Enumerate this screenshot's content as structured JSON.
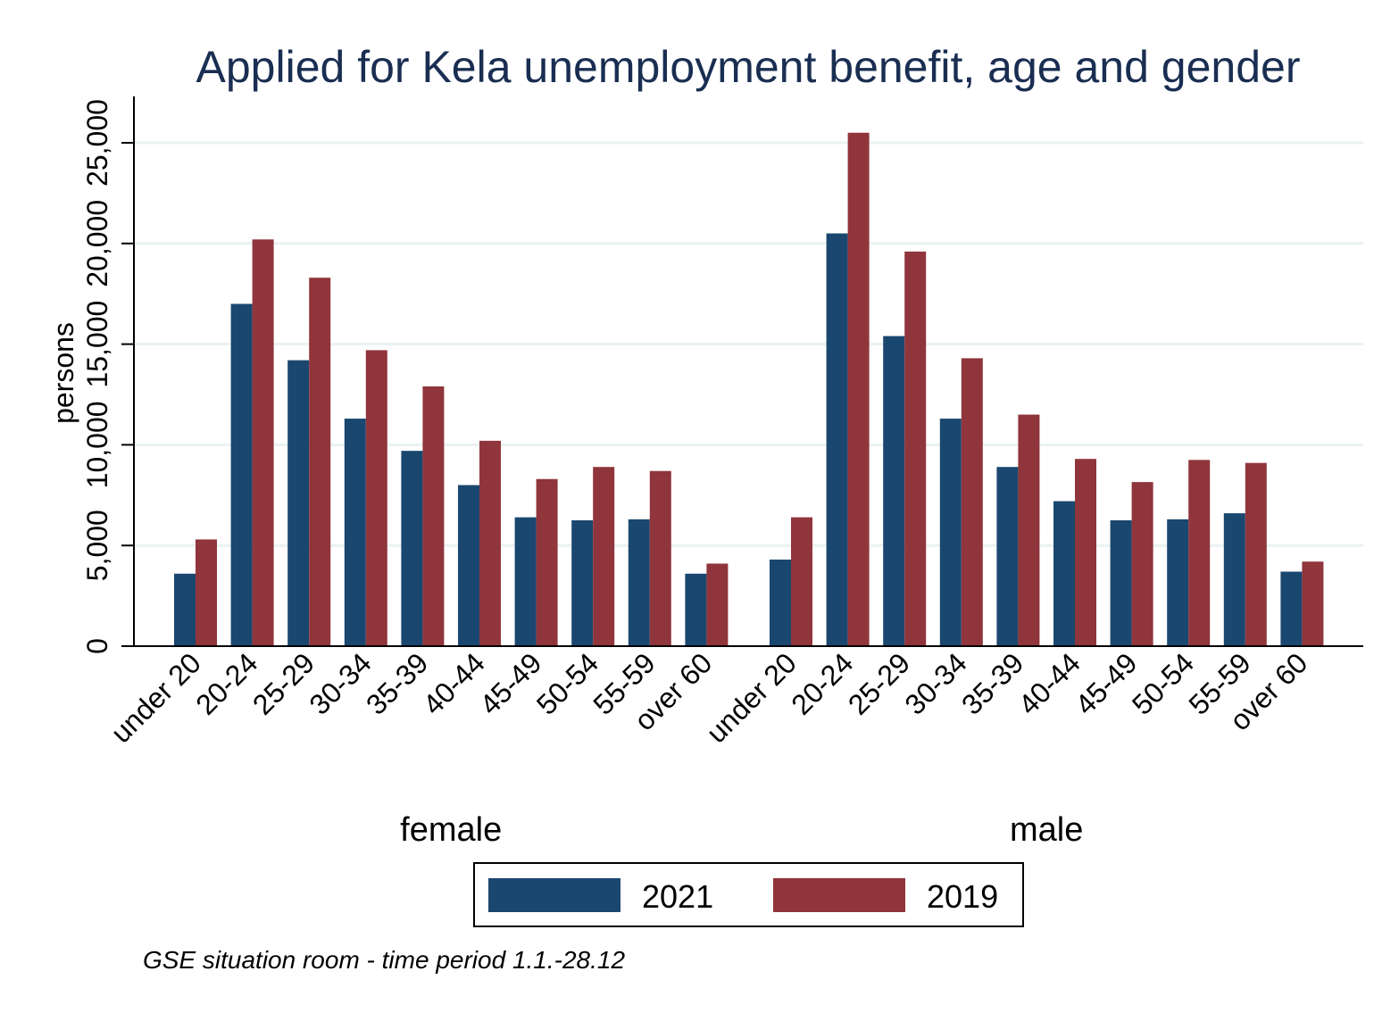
{
  "chart_data": {
    "type": "bar",
    "title": "Applied for Kela unemployment benefit, age and gender",
    "ylabel": "persons",
    "xlabel": "",
    "ylim": [
      0,
      27000
    ],
    "yticks": [
      0,
      5000,
      10000,
      15000,
      20000,
      25000
    ],
    "ytick_labels": [
      "0",
      "5,000",
      "10,000",
      "15,000",
      "20,000",
      "25,000"
    ],
    "grid": true,
    "groups": [
      "female",
      "male"
    ],
    "categories": [
      "under 20",
      "20-24",
      "25-29",
      "30-34",
      "35-39",
      "40-44",
      "45-49",
      "50-54",
      "55-59",
      "over 60"
    ],
    "series": [
      {
        "name": "2021",
        "color": "#1a476f",
        "values": {
          "female": [
            3600,
            17000,
            14200,
            11300,
            9700,
            8000,
            6400,
            6250,
            6300,
            3600
          ],
          "male": [
            4300,
            20500,
            15400,
            11300,
            8900,
            7200,
            6250,
            6300,
            6600,
            3700
          ]
        }
      },
      {
        "name": "2019",
        "color": "#90353b",
        "values": {
          "female": [
            5300,
            20200,
            18300,
            14700,
            12900,
            10200,
            8300,
            8900,
            8700,
            4100
          ],
          "male": [
            6400,
            25500,
            19600,
            14300,
            11500,
            9300,
            8150,
            9250,
            9100,
            4200
          ]
        }
      }
    ],
    "legend": {
      "placement": "bottom",
      "entries": [
        "2021",
        "2019"
      ]
    },
    "note": "GSE situation room - time period 1.1.-28.12"
  }
}
